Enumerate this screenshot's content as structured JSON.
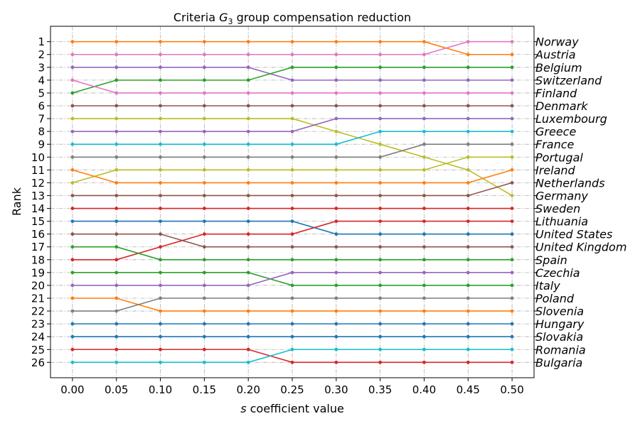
{
  "chart_data": {
    "type": "line",
    "title_prefix": "Criteria ",
    "title_var": "G",
    "title_sub": "3",
    "title_suffix": " group compensation reduction",
    "xlabel_var": "s",
    "xlabel_rest": " coefficient value",
    "ylabel": "Rank",
    "x": [
      0.0,
      0.05,
      0.1,
      0.15,
      0.2,
      0.25,
      0.3,
      0.35,
      0.4,
      0.45,
      0.5
    ],
    "x_tick_labels": [
      "0.00",
      "0.05",
      "0.10",
      "0.15",
      "0.20",
      "0.25",
      "0.30",
      "0.35",
      "0.40",
      "0.45",
      "0.50"
    ],
    "xlim": [
      -0.025,
      0.525
    ],
    "ylim": [
      27.2,
      -0.2
    ],
    "y_ticks": [
      1,
      2,
      3,
      4,
      5,
      6,
      7,
      8,
      9,
      10,
      11,
      12,
      13,
      14,
      15,
      16,
      17,
      18,
      19,
      20,
      21,
      22,
      23,
      24,
      25,
      26
    ],
    "right_labels": [
      "Norway",
      "Austria",
      "Belgium",
      "Switzerland",
      "Finland",
      "Denmark",
      "Luxembourg",
      "Greece",
      "France",
      "Portugal",
      "Ireland",
      "Netherlands",
      "Germany",
      "Sweden",
      "Lithuania",
      "United States",
      "United Kingdom",
      "Spain",
      "Czechia",
      "Italy",
      "Poland",
      "Slovenia",
      "Hungary",
      "Slovakia",
      "Romania",
      "Bulgaria"
    ],
    "grid": true,
    "series": [
      {
        "color": "#ff7f0e",
        "values": [
          1,
          1,
          1,
          1,
          1,
          1,
          1,
          1,
          1,
          2,
          2
        ]
      },
      {
        "color": "#e377c2",
        "values": [
          2,
          2,
          2,
          2,
          2,
          2,
          2,
          2,
          2,
          1,
          1
        ]
      },
      {
        "color": "#9467bd",
        "values": [
          3,
          3,
          3,
          3,
          3,
          4,
          4,
          4,
          4,
          4,
          4
        ]
      },
      {
        "color": "#2ca02c",
        "values": [
          5,
          4,
          4,
          4,
          4,
          3,
          3,
          3,
          3,
          3,
          3
        ]
      },
      {
        "color": "#e377c2",
        "values": [
          4,
          5,
          5,
          5,
          5,
          5,
          5,
          5,
          5,
          5,
          5
        ]
      },
      {
        "color": "#8c564b",
        "values": [
          6,
          6,
          6,
          6,
          6,
          6,
          6,
          6,
          6,
          6,
          6
        ]
      },
      {
        "color": "#bcbd22",
        "values": [
          7,
          7,
          7,
          7,
          7,
          7,
          8,
          9,
          10,
          11,
          13
        ]
      },
      {
        "color": "#9467bd",
        "values": [
          8,
          8,
          8,
          8,
          8,
          8,
          7,
          7,
          7,
          7,
          7
        ]
      },
      {
        "color": "#17becf",
        "values": [
          9,
          9,
          9,
          9,
          9,
          9,
          9,
          8,
          8,
          8,
          8
        ]
      },
      {
        "color": "#7f7f7f",
        "values": [
          10,
          10,
          10,
          10,
          10,
          10,
          10,
          10,
          9,
          9,
          9
        ]
      },
      {
        "color": "#bcbd22",
        "values": [
          12,
          11,
          11,
          11,
          11,
          11,
          11,
          11,
          11,
          10,
          10
        ]
      },
      {
        "color": "#ff7f0e",
        "values": [
          11,
          12,
          12,
          12,
          12,
          12,
          12,
          12,
          12,
          12,
          11
        ]
      },
      {
        "color": "#8c564b",
        "values": [
          13,
          13,
          13,
          13,
          13,
          13,
          13,
          13,
          13,
          13,
          12
        ]
      },
      {
        "color": "#d62728",
        "values": [
          14,
          14,
          14,
          14,
          14,
          14,
          14,
          14,
          14,
          14,
          14
        ]
      },
      {
        "color": "#1f77b4",
        "values": [
          15,
          15,
          15,
          15,
          15,
          15,
          16,
          16,
          16,
          16,
          16
        ]
      },
      {
        "color": "#8c564b",
        "values": [
          16,
          16,
          16,
          17,
          17,
          17,
          17,
          17,
          17,
          17,
          17
        ]
      },
      {
        "color": "#d62728",
        "values": [
          18,
          18,
          17,
          16,
          16,
          16,
          15,
          15,
          15,
          15,
          15
        ]
      },
      {
        "color": "#2ca02c",
        "values": [
          17,
          17,
          18,
          18,
          18,
          18,
          18,
          18,
          18,
          18,
          18
        ]
      },
      {
        "color": "#2ca02c",
        "values": [
          19,
          19,
          19,
          19,
          19,
          20,
          20,
          20,
          20,
          20,
          20
        ]
      },
      {
        "color": "#9467bd",
        "values": [
          20,
          20,
          20,
          20,
          20,
          19,
          19,
          19,
          19,
          19,
          19
        ]
      },
      {
        "color": "#ff7f0e",
        "values": [
          21,
          21,
          22,
          22,
          22,
          22,
          22,
          22,
          22,
          22,
          22
        ]
      },
      {
        "color": "#7f7f7f",
        "values": [
          22,
          22,
          21,
          21,
          21,
          21,
          21,
          21,
          21,
          21,
          21
        ]
      },
      {
        "color": "#1f77b4",
        "values": [
          23,
          23,
          23,
          23,
          23,
          23,
          23,
          23,
          23,
          23,
          23
        ]
      },
      {
        "color": "#1f77b4",
        "values": [
          24,
          24,
          24,
          24,
          24,
          24,
          24,
          24,
          24,
          24,
          24
        ]
      },
      {
        "color": "#d62728",
        "values": [
          25,
          25,
          25,
          25,
          25,
          26,
          26,
          26,
          26,
          26,
          26
        ]
      },
      {
        "color": "#17becf",
        "values": [
          26,
          26,
          26,
          26,
          26,
          25,
          25,
          25,
          25,
          25,
          25
        ]
      }
    ]
  }
}
